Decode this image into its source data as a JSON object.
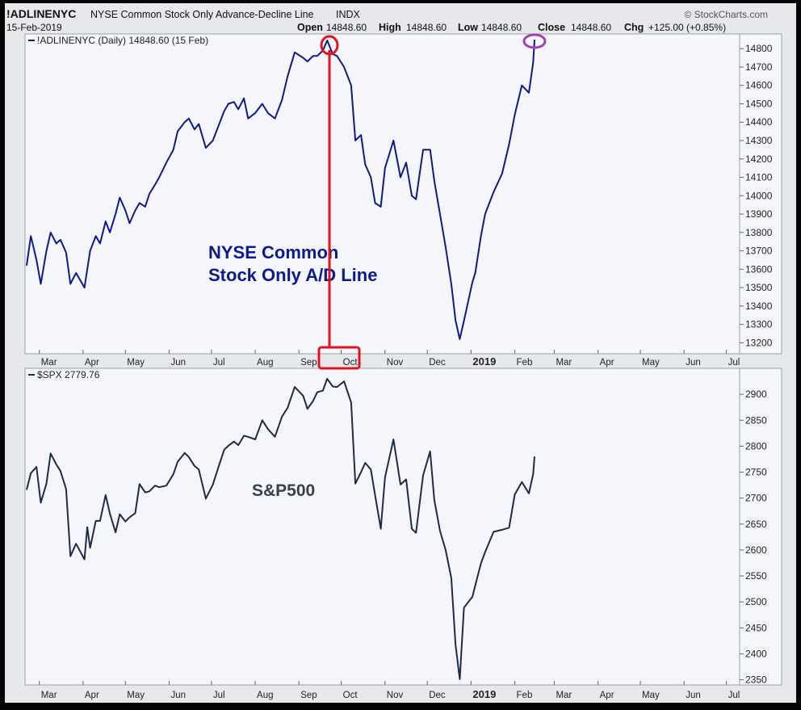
{
  "header": {
    "symbol": "!ADLINENYC",
    "description": "NYSE Common Stock Only Advance-Decline Line",
    "exchange": "INDX",
    "date": "15-Feb-2019",
    "watermark": "© StockCharts.com",
    "quote": [
      {
        "label": "Open",
        "value": "14848.60"
      },
      {
        "label": "High",
        "value": "14848.60"
      },
      {
        "label": "Low",
        "value": "14848.60"
      },
      {
        "label": "Close",
        "value": "14848.60"
      },
      {
        "label": "Chg",
        "value": "+125.00 (+0.85%)"
      }
    ]
  },
  "colors": {
    "ad_line": "#0d1a8c",
    "spx_line": "#1e2a4a",
    "highlight_red": "#e0141e",
    "highlight_purple": "#a040b0",
    "panel_bg": "#f4f6fb"
  },
  "chart_data": [
    {
      "type": "line",
      "legend": "!ADLINENYC (Daily) 14848.60 (15 Feb)",
      "annotation": [
        "NYSE Common",
        "Stock Only A/D Line"
      ],
      "x_tick_labels": [
        "Mar",
        "Apr",
        "May",
        "Jun",
        "Jul",
        "Aug",
        "Sep",
        "Oct",
        "Nov",
        "Dec",
        "2019",
        "Feb",
        "Mar",
        "Apr",
        "May",
        "Jun",
        "Jul"
      ],
      "y_ticks": [
        13200,
        13300,
        13400,
        13500,
        13600,
        13700,
        13800,
        13900,
        14000,
        14100,
        14200,
        14300,
        14400,
        14500,
        14600,
        14700,
        14800
      ],
      "ylim": [
        13140,
        14880
      ],
      "grid": false,
      "series": [
        {
          "name": "!ADLINENYC",
          "points": [
            [
              "2018-02-20",
              13620
            ],
            [
              "2018-02-23",
              13780
            ],
            [
              "2018-02-27",
              13650
            ],
            [
              "2018-03-02",
              13520
            ],
            [
              "2018-03-06",
              13700
            ],
            [
              "2018-03-09",
              13800
            ],
            [
              "2018-03-13",
              13740
            ],
            [
              "2018-03-16",
              13760
            ],
            [
              "2018-03-20",
              13690
            ],
            [
              "2018-03-23",
              13520
            ],
            [
              "2018-03-27",
              13580
            ],
            [
              "2018-04-02",
              13500
            ],
            [
              "2018-04-04",
              13600
            ],
            [
              "2018-04-06",
              13700
            ],
            [
              "2018-04-10",
              13780
            ],
            [
              "2018-04-13",
              13740
            ],
            [
              "2018-04-17",
              13860
            ],
            [
              "2018-04-20",
              13800
            ],
            [
              "2018-04-24",
              13900
            ],
            [
              "2018-04-27",
              13990
            ],
            [
              "2018-05-01",
              13920
            ],
            [
              "2018-05-04",
              13850
            ],
            [
              "2018-05-08",
              13920
            ],
            [
              "2018-05-11",
              13960
            ],
            [
              "2018-05-15",
              13940
            ],
            [
              "2018-05-18",
              14010
            ],
            [
              "2018-05-22",
              14060
            ],
            [
              "2018-05-25",
              14100
            ],
            [
              "2018-05-30",
              14180
            ],
            [
              "2018-06-04",
              14250
            ],
            [
              "2018-06-07",
              14350
            ],
            [
              "2018-06-12",
              14400
            ],
            [
              "2018-06-15",
              14420
            ],
            [
              "2018-06-19",
              14360
            ],
            [
              "2018-06-22",
              14390
            ],
            [
              "2018-06-27",
              14260
            ],
            [
              "2018-07-02",
              14300
            ],
            [
              "2018-07-06",
              14380
            ],
            [
              "2018-07-10",
              14460
            ],
            [
              "2018-07-13",
              14500
            ],
            [
              "2018-07-17",
              14510
            ],
            [
              "2018-07-20",
              14470
            ],
            [
              "2018-07-24",
              14530
            ],
            [
              "2018-07-27",
              14420
            ],
            [
              "2018-08-01",
              14450
            ],
            [
              "2018-08-06",
              14500
            ],
            [
              "2018-08-10",
              14450
            ],
            [
              "2018-08-15",
              14420
            ],
            [
              "2018-08-20",
              14520
            ],
            [
              "2018-08-24",
              14650
            ],
            [
              "2018-08-29",
              14780
            ],
            [
              "2018-09-04",
              14750
            ],
            [
              "2018-09-07",
              14730
            ],
            [
              "2018-09-11",
              14760
            ],
            [
              "2018-09-14",
              14760
            ],
            [
              "2018-09-18",
              14790
            ],
            [
              "2018-09-21",
              14845
            ],
            [
              "2018-09-25",
              14770
            ],
            [
              "2018-09-28",
              14760
            ],
            [
              "2018-10-03",
              14700
            ],
            [
              "2018-10-08",
              14600
            ],
            [
              "2018-10-11",
              14300
            ],
            [
              "2018-10-15",
              14330
            ],
            [
              "2018-10-18",
              14170
            ],
            [
              "2018-10-22",
              14100
            ],
            [
              "2018-10-25",
              13960
            ],
            [
              "2018-10-29",
              13940
            ],
            [
              "2018-11-01",
              14150
            ],
            [
              "2018-11-07",
              14300
            ],
            [
              "2018-11-12",
              14100
            ],
            [
              "2018-11-16",
              14180
            ],
            [
              "2018-11-20",
              14000
            ],
            [
              "2018-11-23",
              13980
            ],
            [
              "2018-11-28",
              14250
            ],
            [
              "2018-12-03",
              14250
            ],
            [
              "2018-12-06",
              14080
            ],
            [
              "2018-12-10",
              13900
            ],
            [
              "2018-12-14",
              13720
            ],
            [
              "2018-12-18",
              13520
            ],
            [
              "2018-12-21",
              13320
            ],
            [
              "2018-12-24",
              13220
            ],
            [
              "2018-12-27",
              13320
            ],
            [
              "2019-01-02",
              13530
            ],
            [
              "2019-01-04",
              13580
            ],
            [
              "2019-01-08",
              13780
            ],
            [
              "2019-01-11",
              13900
            ],
            [
              "2019-01-17",
              14020
            ],
            [
              "2019-01-23",
              14120
            ],
            [
              "2019-01-28",
              14280
            ],
            [
              "2019-02-01",
              14440
            ],
            [
              "2019-02-06",
              14600
            ],
            [
              "2019-02-11",
              14560
            ],
            [
              "2019-02-14",
              14724
            ],
            [
              "2019-02-15",
              14849
            ]
          ]
        }
      ]
    },
    {
      "type": "line",
      "legend": "$SPX 2779.76",
      "annotation": [
        "S&P500"
      ],
      "x_tick_labels": [
        "Mar",
        "Apr",
        "May",
        "Jun",
        "Jul",
        "Aug",
        "Sep",
        "Oct",
        "Nov",
        "Dec",
        "2019",
        "Feb",
        "Mar",
        "Apr",
        "May",
        "Jun",
        "Jul"
      ],
      "y_ticks": [
        2350,
        2400,
        2450,
        2500,
        2550,
        2600,
        2650,
        2700,
        2750,
        2800,
        2850,
        2900
      ],
      "ylim": [
        2340,
        2950
      ],
      "grid": false,
      "series": [
        {
          "name": "$SPX",
          "points": [
            [
              "2018-02-20",
              2716
            ],
            [
              "2018-02-23",
              2748
            ],
            [
              "2018-02-27",
              2760
            ],
            [
              "2018-03-02",
              2691
            ],
            [
              "2018-03-06",
              2728
            ],
            [
              "2018-03-09",
              2786
            ],
            [
              "2018-03-13",
              2765
            ],
            [
              "2018-03-16",
              2752
            ],
            [
              "2018-03-20",
              2717
            ],
            [
              "2018-03-23",
              2588
            ],
            [
              "2018-03-27",
              2612
            ],
            [
              "2018-04-02",
              2582
            ],
            [
              "2018-04-04",
              2644
            ],
            [
              "2018-04-06",
              2604
            ],
            [
              "2018-04-10",
              2656
            ],
            [
              "2018-04-13",
              2656
            ],
            [
              "2018-04-17",
              2706
            ],
            [
              "2018-04-20",
              2670
            ],
            [
              "2018-04-24",
              2634
            ],
            [
              "2018-04-27",
              2669
            ],
            [
              "2018-05-01",
              2655
            ],
            [
              "2018-05-04",
              2663
            ],
            [
              "2018-05-08",
              2671
            ],
            [
              "2018-05-11",
              2727
            ],
            [
              "2018-05-15",
              2711
            ],
            [
              "2018-05-18",
              2713
            ],
            [
              "2018-05-22",
              2724
            ],
            [
              "2018-05-25",
              2721
            ],
            [
              "2018-05-30",
              2724
            ],
            [
              "2018-06-04",
              2746
            ],
            [
              "2018-06-07",
              2770
            ],
            [
              "2018-06-12",
              2787
            ],
            [
              "2018-06-15",
              2779
            ],
            [
              "2018-06-19",
              2762
            ],
            [
              "2018-06-22",
              2755
            ],
            [
              "2018-06-27",
              2699
            ],
            [
              "2018-07-02",
              2726
            ],
            [
              "2018-07-06",
              2760
            ],
            [
              "2018-07-10",
              2793
            ],
            [
              "2018-07-13",
              2801
            ],
            [
              "2018-07-17",
              2809
            ],
            [
              "2018-07-20",
              2802
            ],
            [
              "2018-07-24",
              2820
            ],
            [
              "2018-07-27",
              2818
            ],
            [
              "2018-08-01",
              2813
            ],
            [
              "2018-08-06",
              2850
            ],
            [
              "2018-08-10",
              2833
            ],
            [
              "2018-08-15",
              2818
            ],
            [
              "2018-08-20",
              2857
            ],
            [
              "2018-08-24",
              2874
            ],
            [
              "2018-08-29",
              2914
            ],
            [
              "2018-09-04",
              2897
            ],
            [
              "2018-09-07",
              2872
            ],
            [
              "2018-09-11",
              2887
            ],
            [
              "2018-09-14",
              2904
            ],
            [
              "2018-09-18",
              2907
            ],
            [
              "2018-09-21",
              2930
            ],
            [
              "2018-09-25",
              2915
            ],
            [
              "2018-09-28",
              2914
            ],
            [
              "2018-10-03",
              2925
            ],
            [
              "2018-10-08",
              2884
            ],
            [
              "2018-10-11",
              2728
            ],
            [
              "2018-10-15",
              2750
            ],
            [
              "2018-10-18",
              2768
            ],
            [
              "2018-10-22",
              2755
            ],
            [
              "2018-10-25",
              2705
            ],
            [
              "2018-10-29",
              2641
            ],
            [
              "2018-11-01",
              2740
            ],
            [
              "2018-11-07",
              2813
            ],
            [
              "2018-11-12",
              2726
            ],
            [
              "2018-11-16",
              2736
            ],
            [
              "2018-11-20",
              2641
            ],
            [
              "2018-11-23",
              2633
            ],
            [
              "2018-11-28",
              2744
            ],
            [
              "2018-12-03",
              2790
            ],
            [
              "2018-12-06",
              2696
            ],
            [
              "2018-12-10",
              2637
            ],
            [
              "2018-12-14",
              2600
            ],
            [
              "2018-12-18",
              2546
            ],
            [
              "2018-12-21",
              2417
            ],
            [
              "2018-12-24",
              2351
            ],
            [
              "2018-12-27",
              2489
            ],
            [
              "2019-01-02",
              2510
            ],
            [
              "2019-01-04",
              2532
            ],
            [
              "2019-01-08",
              2574
            ],
            [
              "2019-01-11",
              2596
            ],
            [
              "2019-01-17",
              2635
            ],
            [
              "2019-01-23",
              2639
            ],
            [
              "2019-01-28",
              2643
            ],
            [
              "2019-02-01",
              2707
            ],
            [
              "2019-02-06",
              2731
            ],
            [
              "2019-02-11",
              2709
            ],
            [
              "2019-02-14",
              2746
            ],
            [
              "2019-02-15",
              2780
            ]
          ]
        }
      ]
    }
  ]
}
